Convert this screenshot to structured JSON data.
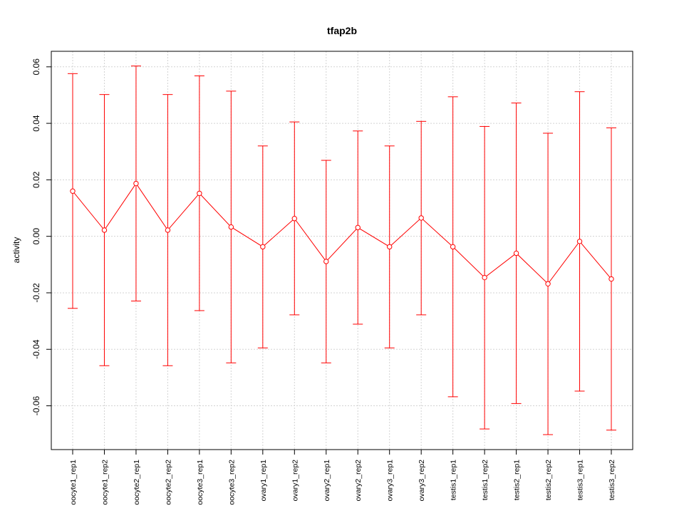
{
  "chart_data": {
    "type": "line",
    "title": "tfap2b",
    "xlabel": "",
    "ylabel": "activity",
    "ylim": [
      -0.0755,
      0.0655
    ],
    "yticks": [
      0.06,
      0.04,
      0.02,
      0.0,
      -0.02,
      -0.04,
      -0.06
    ],
    "ytick_labels": [
      "0.06",
      "0.04",
      "0.02",
      "0.00",
      "-0.02",
      "-0.04",
      "-0.06"
    ],
    "grid": true,
    "color": "#ff0000",
    "categories": [
      "oocyte1_rep1",
      "oocyte1_rep2",
      "oocyte2_rep1",
      "oocyte2_rep2",
      "oocyte3_rep1",
      "oocyte3_rep2",
      "ovary1_rep1",
      "ovary1_rep2",
      "ovary2_rep1",
      "ovary2_rep2",
      "ovary3_rep1",
      "ovary3_rep2",
      "testis1_rep1",
      "testis1_rep2",
      "testis2_rep1",
      "testis2_rep2",
      "testis3_rep1",
      "testis3_rep2"
    ],
    "values": [
      0.016,
      0.0022,
      0.0187,
      0.0022,
      0.0152,
      0.0033,
      -0.0037,
      0.0063,
      -0.0089,
      0.0031,
      -0.0037,
      0.0065,
      -0.0037,
      -0.0146,
      -0.006,
      -0.0168,
      -0.0018,
      -0.0151
    ],
    "upper": [
      0.0576,
      0.0502,
      0.0603,
      0.0502,
      0.0568,
      0.0514,
      0.032,
      0.0405,
      0.0269,
      0.0373,
      0.032,
      0.0407,
      0.0494,
      0.0389,
      0.0472,
      0.0365,
      0.0512,
      0.0384
    ],
    "lower": [
      -0.0255,
      -0.0458,
      -0.0229,
      -0.0458,
      -0.0263,
      -0.0448,
      -0.0395,
      -0.0278,
      -0.0448,
      -0.0311,
      -0.0395,
      -0.0278,
      -0.0568,
      -0.0682,
      -0.0592,
      -0.0702,
      -0.0548,
      -0.0686
    ]
  }
}
